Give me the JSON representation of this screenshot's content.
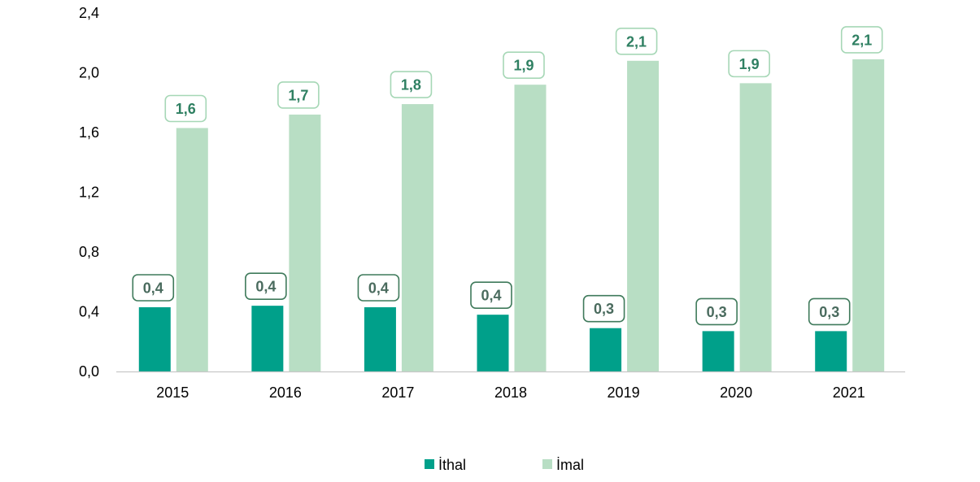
{
  "colors": {
    "ithal": "#00a08a",
    "imal": "#b8dec4",
    "ithal_label_border": "#3f7a5b",
    "ithal_label_text": "#4a6b5e",
    "imal_label_border": "#a6d7b6",
    "imal_label_text": "#2f8062",
    "axis": "#c8c8c8"
  },
  "chart_data": {
    "type": "bar",
    "categories": [
      "2015",
      "2016",
      "2017",
      "2018",
      "2019",
      "2020",
      "2021"
    ],
    "series": [
      {
        "name": "İthal",
        "values": [
          0.43,
          0.44,
          0.43,
          0.38,
          0.29,
          0.27,
          0.27
        ],
        "labels": [
          "0,4",
          "0,4",
          "0,4",
          "0,4",
          "0,3",
          "0,3",
          "0,3"
        ]
      },
      {
        "name": "İmal",
        "values": [
          1.63,
          1.72,
          1.79,
          1.92,
          2.08,
          1.93,
          2.09
        ],
        "labels": [
          "1,6",
          "1,7",
          "1,8",
          "1,9",
          "2,1",
          "1,9",
          "2,1"
        ]
      }
    ],
    "ylim": [
      0,
      2.4
    ],
    "yticks": [
      0,
      0.4,
      0.8,
      1.2,
      1.6,
      2.0,
      2.4
    ],
    "ytick_labels": [
      "0,0",
      "0,4",
      "0,8",
      "1,2",
      "1,6",
      "2,0",
      "2,4"
    ],
    "grid": false,
    "legend_position": "bottom-center"
  }
}
